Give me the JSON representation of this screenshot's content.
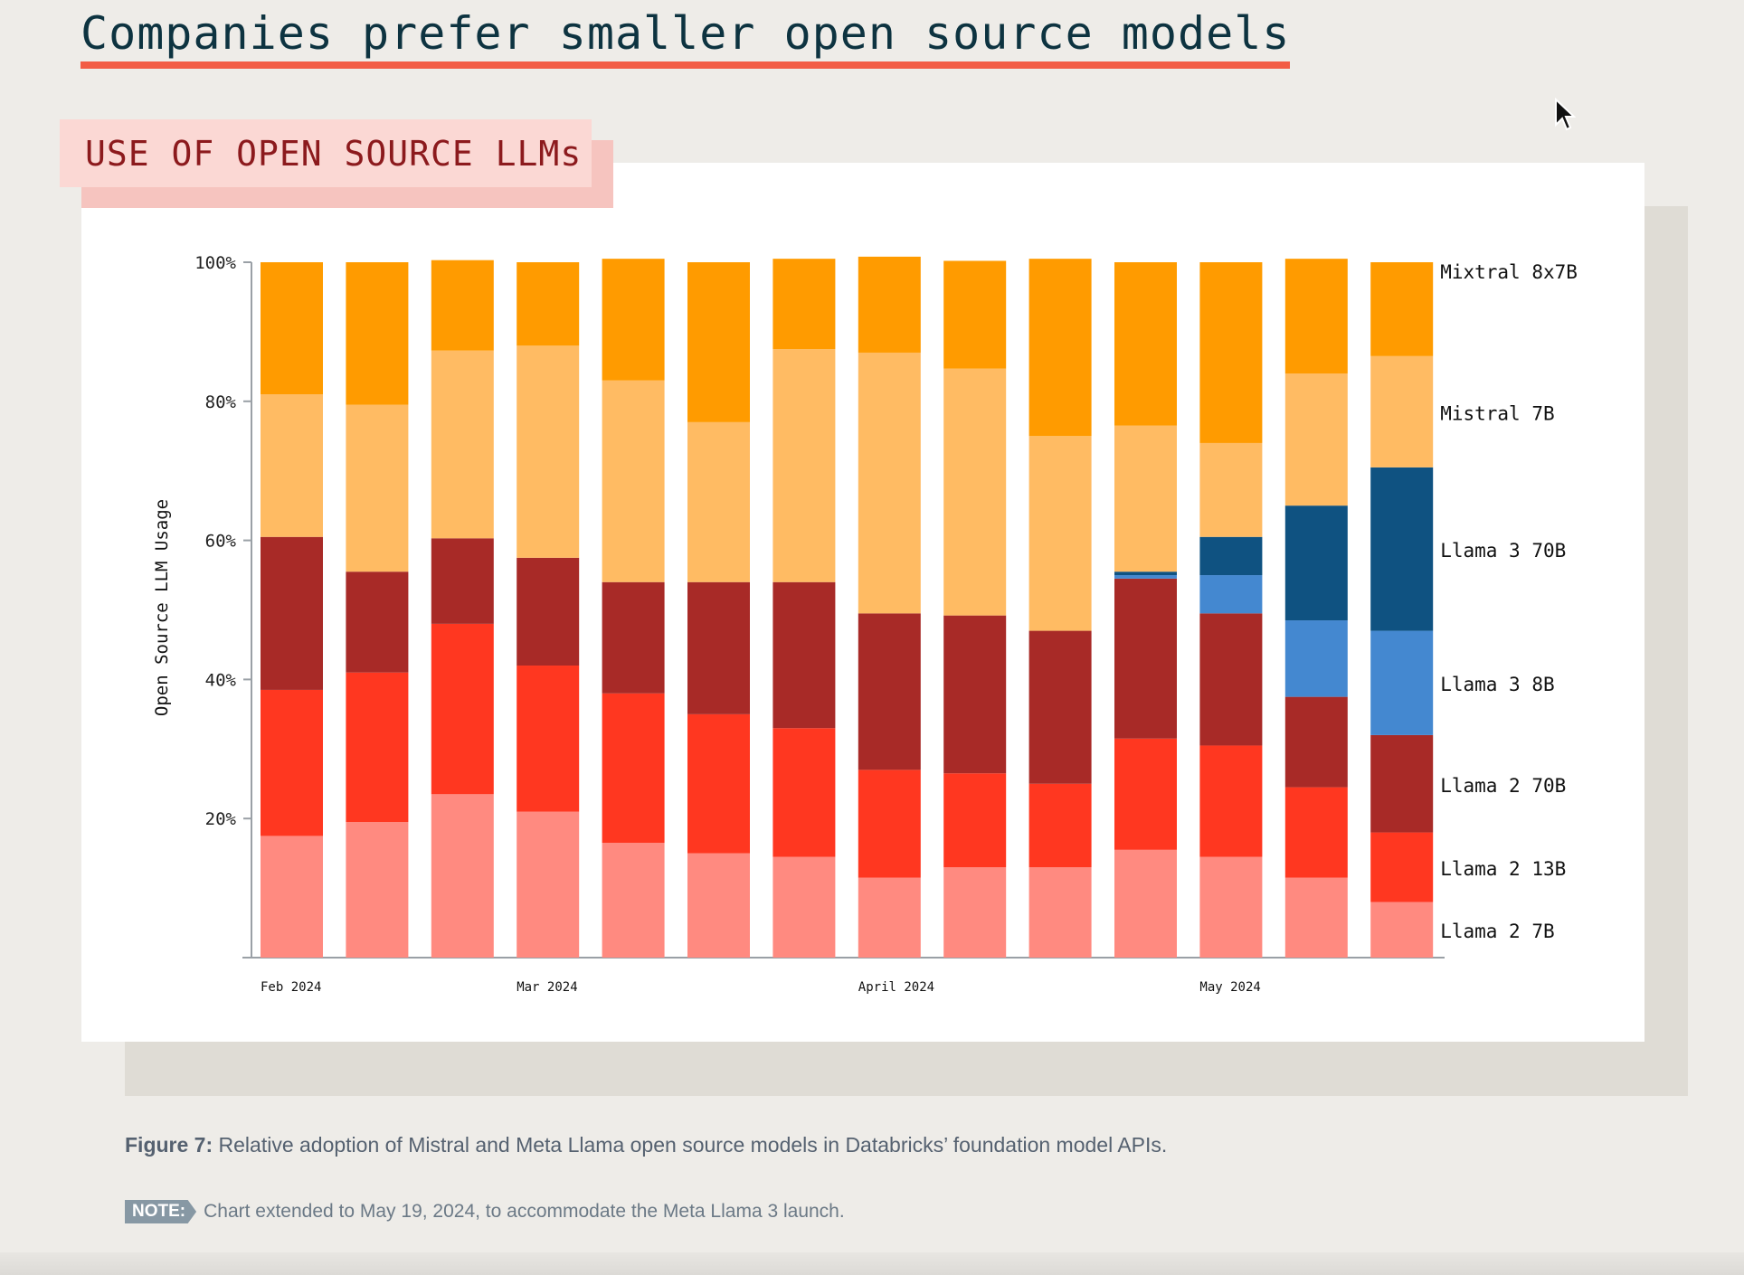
{
  "page": {
    "title": "Companies prefer smaller open source models",
    "section_tag": "USE OF OPEN SOURCE LLMs",
    "caption_label": "Figure 7:",
    "caption_text": "Relative adoption of Mistral and Meta Llama open source models in Databricks’ foundation model APIs.",
    "note_label": "NOTE:",
    "note_text": "Chart extended to May 19, 2024, to accommodate the Meta Llama 3 launch."
  },
  "chart_data": {
    "type": "bar",
    "stacked": true,
    "ylabel": "Open Source LLM Usage",
    "ylim": [
      0,
      100
    ],
    "yticks": [
      "100%",
      "80%",
      "60%",
      "40%",
      "20%"
    ],
    "ytick_values": [
      100,
      80,
      60,
      40,
      20
    ],
    "xtick_labels": [
      {
        "label": "Feb 2024",
        "index": 0
      },
      {
        "label": "Mar 2024",
        "index": 3
      },
      {
        "label": "April 2024",
        "index": 7
      },
      {
        "label": "May 2024",
        "index": 11
      }
    ],
    "legend_position": "right, aligned to last bar",
    "series": [
      {
        "name": "Llama 2 7B",
        "color": "#ff8a80",
        "values": [
          17.5,
          19.5,
          23.5,
          21,
          16.5,
          15,
          14.5,
          11.5,
          13,
          13,
          15.5,
          14.5,
          11.5,
          8
        ]
      },
      {
        "name": "Llama 2 13B",
        "color": "#ff3720",
        "values": [
          21,
          21.5,
          24.5,
          21,
          21.5,
          20,
          18.5,
          15.5,
          13.5,
          12,
          16,
          16,
          13,
          10
        ]
      },
      {
        "name": "Llama 2 70B",
        "color": "#a82a27",
        "values": [
          22,
          14.5,
          12.3,
          15.5,
          16,
          19,
          21,
          22.5,
          22.7,
          22,
          23,
          19,
          13,
          14
        ]
      },
      {
        "name": "Llama 3 8B",
        "color": "#4488d0",
        "values": [
          0,
          0,
          0,
          0,
          0,
          0,
          0,
          0,
          0,
          0,
          0.5,
          5.5,
          11,
          15
        ]
      },
      {
        "name": "Llama 3 70B",
        "color": "#0f5281",
        "values": [
          0,
          0,
          0,
          0,
          0,
          0,
          0,
          0,
          0,
          0,
          0.5,
          5.5,
          16.5,
          23.5
        ]
      },
      {
        "name": "Mistral 7B",
        "color": "#ffbb63",
        "values": [
          20.5,
          24,
          27,
          30.5,
          29,
          23,
          33.5,
          37.5,
          35.5,
          28,
          21,
          13.5,
          19,
          16
        ]
      },
      {
        "name": "Mixtral 8x7B",
        "color": "#ff9b00",
        "values": [
          19,
          20.5,
          13,
          12,
          17.5,
          23,
          13,
          13.8,
          15.5,
          25.5,
          23.5,
          26,
          16.5,
          13.5
        ]
      }
    ]
  }
}
